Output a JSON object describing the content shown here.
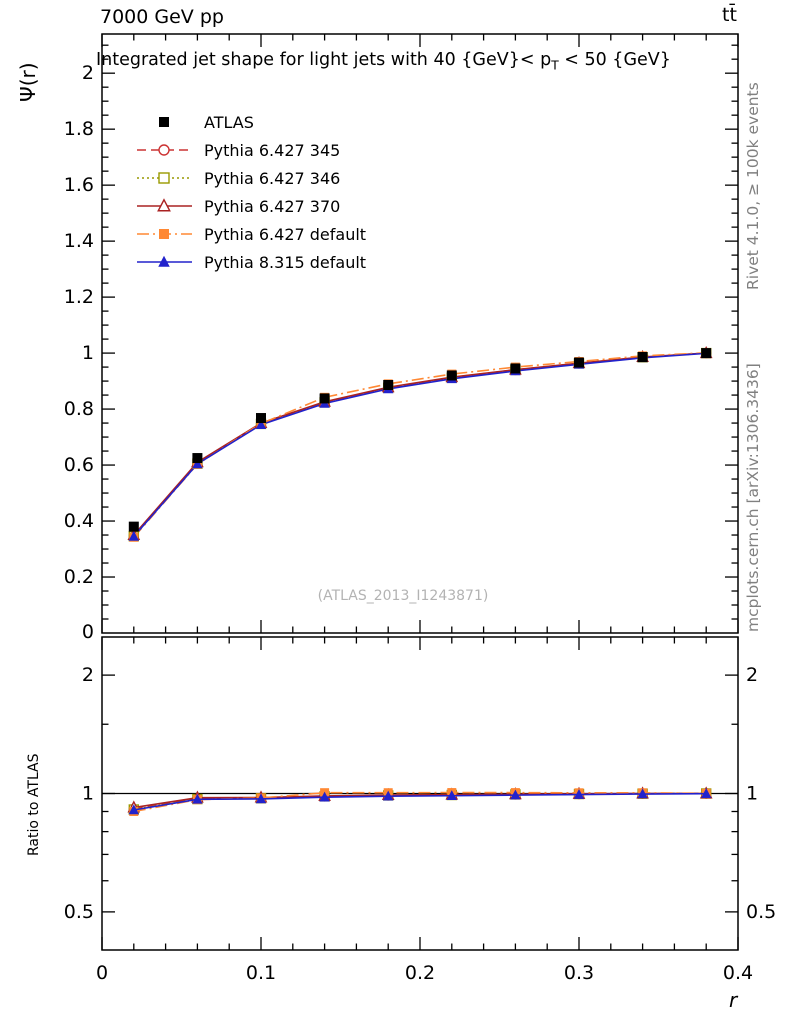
{
  "page": {
    "header_left": "7000 GeV pp",
    "header_right": "tt̄",
    "side_top": "Rivet 4.1.0, ≥ 100k events",
    "side_bottom": "mcplots.cern.ch [arXiv:1306.3436]",
    "watermark": "(ATLAS_2013_I1243871)"
  },
  "chart_data": {
    "type": "line",
    "title_parts": {
      "pre": "Integrated jet shape for light jets with 40 {GeV}< p",
      "sub": "T",
      "post": " < 50 {GeV}"
    },
    "xlabel": "r",
    "ylabel_main": "Ψ(r)",
    "ylabel_ratio": "Ratio to ATLAS",
    "xlim": [
      0,
      0.4
    ],
    "xticks_major": [
      0,
      0.1,
      0.2,
      0.3,
      0.4
    ],
    "xtick_minor_step": 0.02,
    "ylim_main": [
      0,
      2.14
    ],
    "ytick_main_major_step": 0.2,
    "ytick_main_minor_step": 0.05,
    "ratio_scale": "log",
    "ylim_ratio": [
      0.4,
      2.5
    ],
    "yticks_ratio": [
      0.5,
      1,
      2
    ],
    "yticks_ratio_minor": [
      0.6,
      0.7,
      0.8,
      0.9,
      1.5
    ],
    "legend_position": "top-left",
    "x": [
      0.02,
      0.06,
      0.1,
      0.14,
      0.18,
      0.22,
      0.26,
      0.3,
      0.34,
      0.38
    ],
    "series": [
      {
        "name": "ATLAS",
        "role": "data",
        "color": "#000000",
        "marker": "square-filled",
        "line": "none",
        "values": [
          0.38,
          0.625,
          0.768,
          0.838,
          0.886,
          0.92,
          0.945,
          0.966,
          0.986,
          1.0
        ]
      },
      {
        "name": "Pythia 6.427 345",
        "role": "mc",
        "color": "#cc3333",
        "marker": "circle-open",
        "line": "dashed",
        "values": [
          0.347,
          0.606,
          0.748,
          0.824,
          0.876,
          0.913,
          0.94,
          0.963,
          0.985,
          1.0
        ]
      },
      {
        "name": "Pythia 6.427 346",
        "role": "mc",
        "color": "#999900",
        "marker": "square-open",
        "line": "dotted",
        "values": [
          0.346,
          0.605,
          0.747,
          0.824,
          0.876,
          0.912,
          0.94,
          0.963,
          0.985,
          1.0
        ]
      },
      {
        "name": "Pythia 6.427 370",
        "role": "mc",
        "color": "#aa2222",
        "marker": "triangle-open",
        "line": "solid",
        "values": [
          0.35,
          0.61,
          0.75,
          0.826,
          0.878,
          0.914,
          0.941,
          0.964,
          0.986,
          1.0
        ]
      },
      {
        "name": "Pythia 6.427 default",
        "role": "mc",
        "color": "#ff8833",
        "marker": "square-filled",
        "line": "dashdot",
        "values": [
          0.342,
          0.603,
          0.748,
          0.842,
          0.89,
          0.925,
          0.95,
          0.97,
          0.99,
          1.001
        ]
      },
      {
        "name": "Pythia 8.315 default",
        "role": "mc",
        "color": "#2222cc",
        "marker": "triangle-filled",
        "line": "solid",
        "values": [
          0.345,
          0.604,
          0.744,
          0.82,
          0.872,
          0.908,
          0.936,
          0.96,
          0.983,
          0.999
        ]
      }
    ]
  }
}
